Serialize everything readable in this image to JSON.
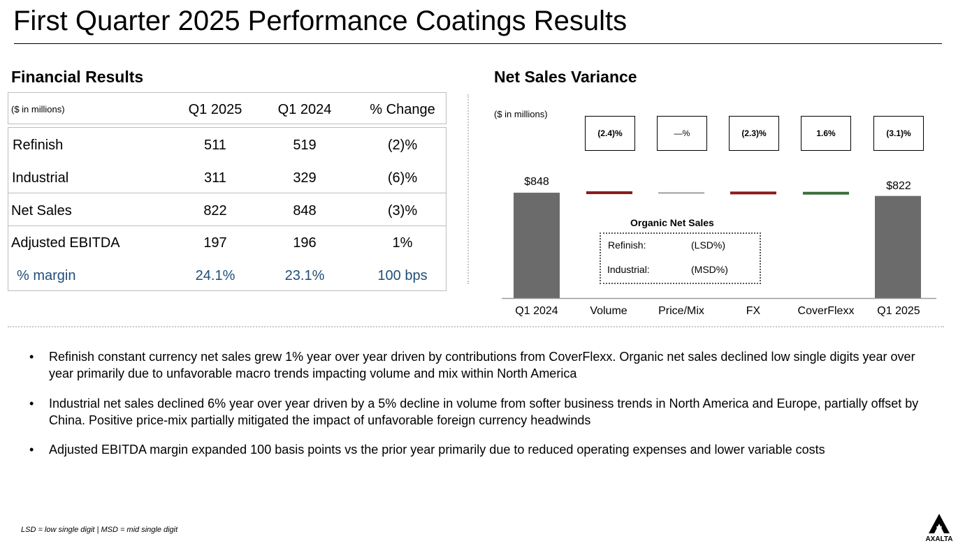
{
  "title": "First Quarter 2025 Performance Coatings Results",
  "financial": {
    "heading": "Financial Results",
    "unit_note": "($ in millions)",
    "columns": [
      "Q1 2025",
      "Q1 2024",
      "% Change"
    ],
    "rows": [
      {
        "label": "Refinish",
        "values": [
          "511",
          "519",
          "(2)%"
        ]
      },
      {
        "label": "Industrial",
        "values": [
          "311",
          "329",
          "(6)%"
        ]
      },
      {
        "label": "Net Sales",
        "values": [
          "822",
          "848",
          "(3)%"
        ]
      },
      {
        "label": "Adjusted EBITDA",
        "values": [
          "197",
          "196",
          "1%"
        ]
      },
      {
        "label": "% margin",
        "values": [
          "24.1%",
          "23.1%",
          "100 bps"
        ]
      }
    ],
    "margin_color": "#1f4e79"
  },
  "variance": {
    "heading": "Net Sales Variance",
    "unit_note": "($ in millions)",
    "pct_boxes": [
      "(2.4)%",
      "—%",
      "(2.3)%",
      "1.6%",
      "(3.1)%"
    ],
    "start_label": "$848",
    "end_label": "$822",
    "organic": {
      "title": "Organic Net Sales",
      "rows": [
        {
          "label": "Refinish:",
          "value": "(LSD%)"
        },
        {
          "label": "Industrial:",
          "value": "(MSD%)"
        }
      ]
    }
  },
  "chart_data": {
    "type": "bar",
    "subtype": "waterfall",
    "categories": [
      "Q1 2024",
      "Volume",
      "Price/Mix",
      "FX",
      "CoverFlexx",
      "Q1 2025"
    ],
    "values": [
      848,
      -20,
      0,
      -20,
      14,
      822
    ],
    "ylim": [
      0,
      900
    ],
    "colors": {
      "total": "#6b6b6b",
      "negative": "#8b1a1a",
      "neutral": "#9e9e9e",
      "positive": "#3c6e3c"
    }
  },
  "bullets": [
    "Refinish constant currency net sales grew 1% year over year driven by contributions from CoverFlexx.  Organic net sales declined low single digits year over year primarily due to unfavorable macro trends impacting volume and mix within North America",
    "Industrial net sales declined 6% year over year driven by a 5% decline in volume from softer business trends in North America and Europe, partially offset by China.  Positive price-mix partially mitigated the impact of unfavorable foreign currency headwinds",
    "Adjusted EBITDA margin expanded 100 basis points vs the prior year primarily due to reduced operating expenses and lower variable costs"
  ],
  "bullet_symbol": "•",
  "footnote": "LSD = low single digit | MSD = mid single digit",
  "logo": {
    "icon": "axalta-logo-icon",
    "text": "AXALTA"
  }
}
